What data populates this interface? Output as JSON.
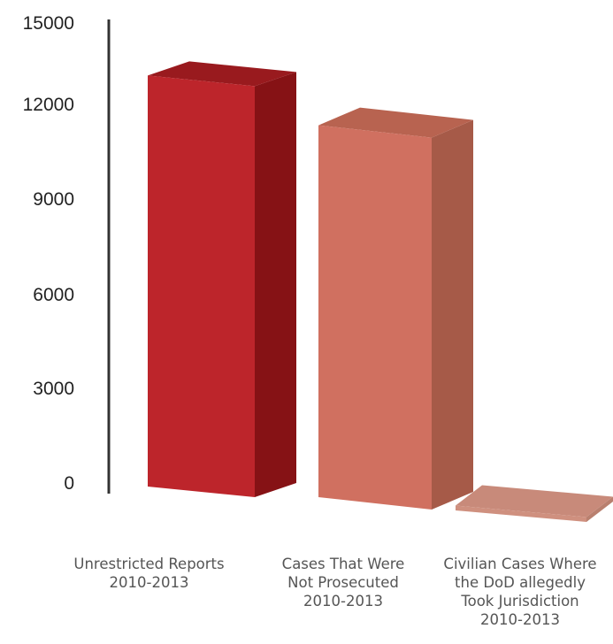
{
  "chart_data": {
    "type": "bar",
    "style": "3d",
    "categories": [
      [
        "Unrestricted Reports",
        "2010-2013"
      ],
      [
        "Cases That Were",
        "Not Prosecuted",
        "2010-2013"
      ],
      [
        "Civilian Cases Where",
        "the DoD allegedly",
        "Took Jurisdiction",
        "2010-2013"
      ]
    ],
    "values": [
      12800,
      11300,
      150
    ],
    "yticks": [
      "15000",
      "12000",
      "9000",
      "6000",
      "3000",
      "0"
    ],
    "ylim": [
      0,
      15000
    ],
    "grid": false,
    "colors": {
      "front": [
        "#bd252b",
        "#d07060",
        "#cf907f"
      ],
      "side": [
        "#861215",
        "#a65a48",
        "#b9806f"
      ],
      "top": [
        "#991a1e",
        "#b86350",
        "#c88a7a"
      ]
    }
  }
}
